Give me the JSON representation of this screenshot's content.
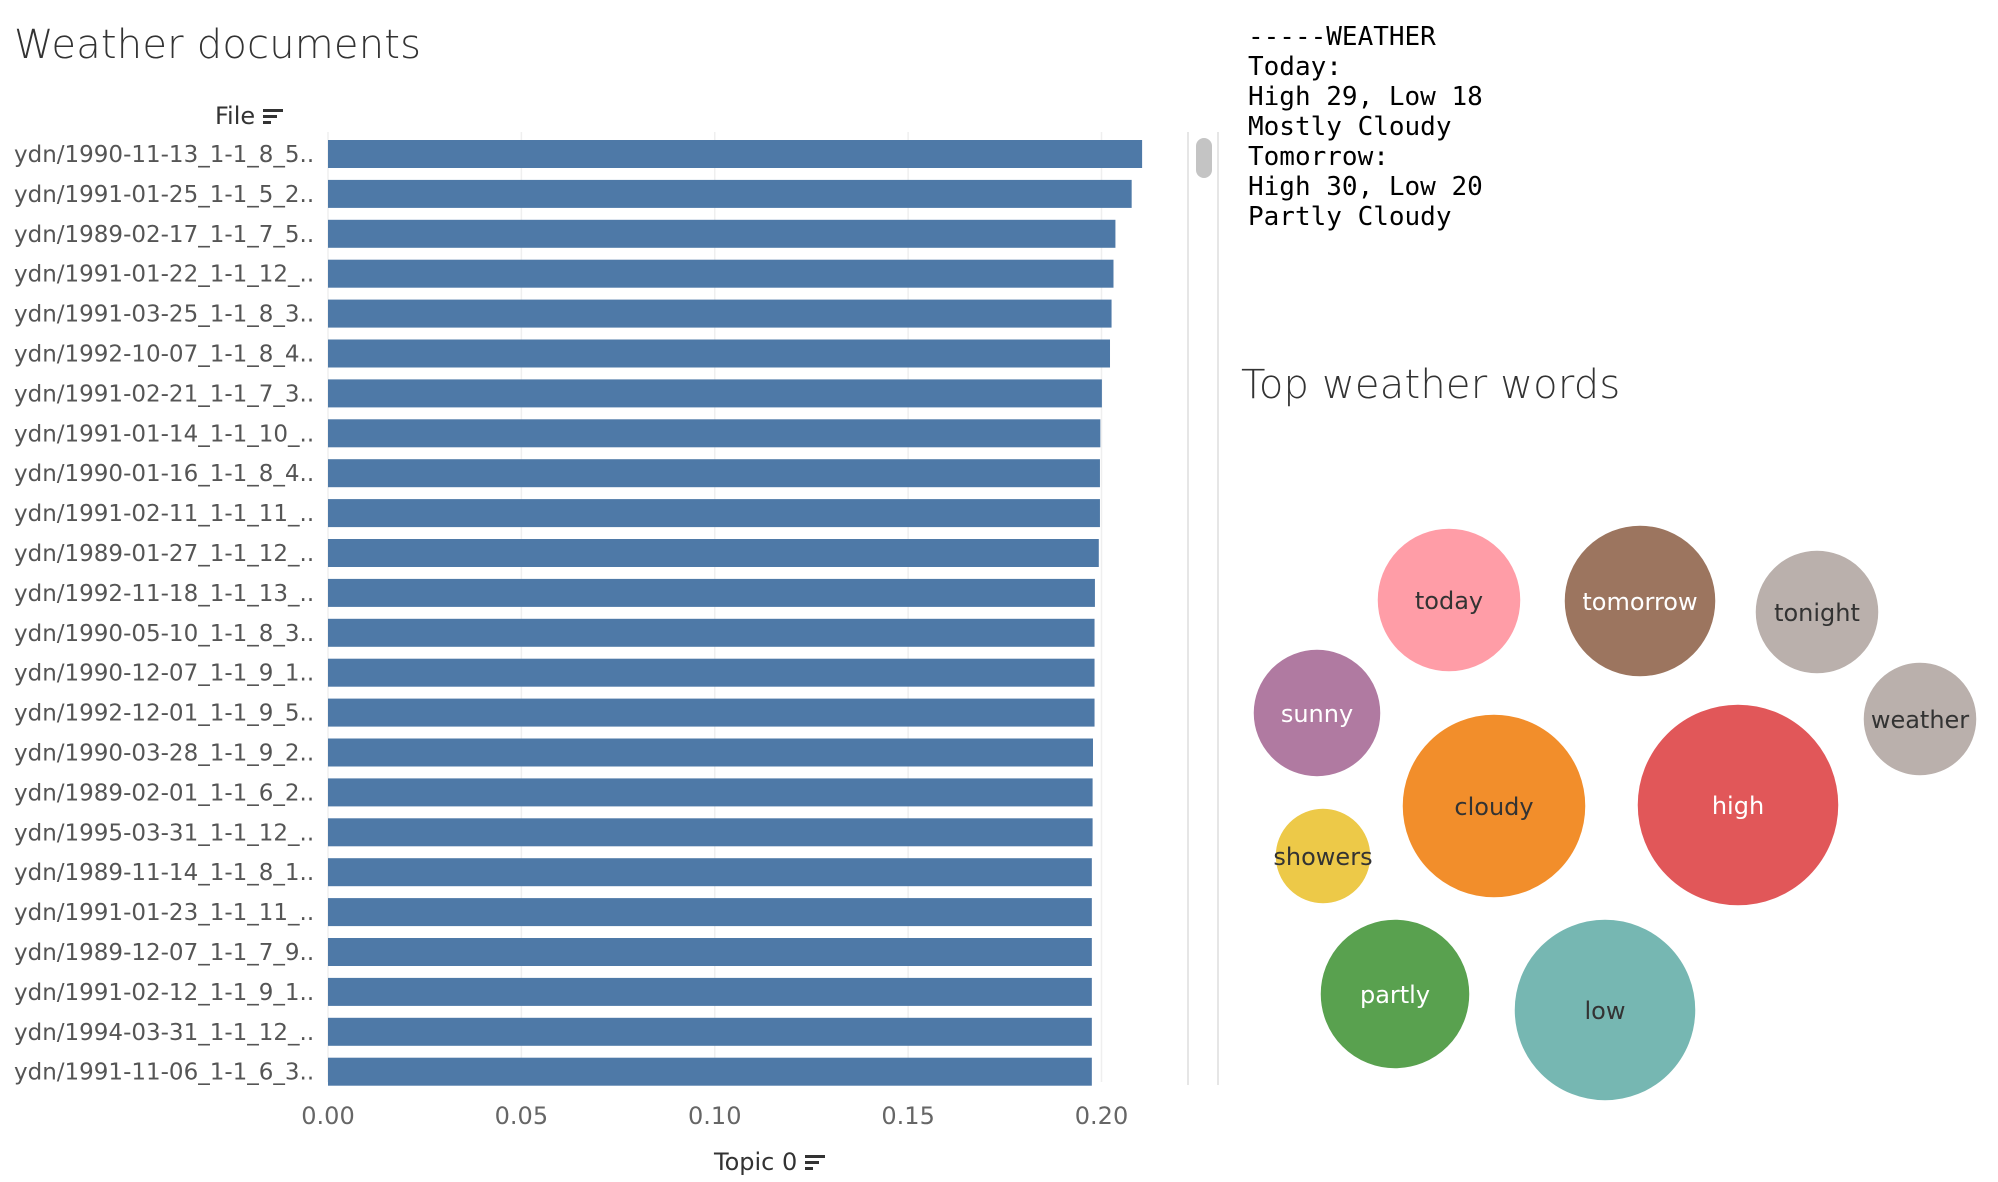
{
  "left_panel": {
    "title": "Weather documents",
    "row_header": "File",
    "axis_label": "Topic 0"
  },
  "weather_text": {
    "lines": [
      "-----WEATHER",
      "Today:",
      "High 29, Low 18",
      "Mostly Cloudy",
      "Tomorrow:",
      "High 30, Low 20",
      "Partly Cloudy"
    ]
  },
  "right_panel": {
    "title": "Top weather words"
  },
  "colors": {
    "bar": "#4e79a7",
    "gridline": "#efefef",
    "today": "#ff9da7",
    "tomorrow": "#9c755f",
    "tonight": "#bab0ac",
    "weather": "#bab0ac",
    "sunny": "#b07aa1",
    "cloudy": "#f28e2b",
    "high": "#e15759",
    "showers": "#edc948",
    "partly": "#59a14f",
    "low": "#76b7b2"
  },
  "chart_data": [
    {
      "type": "bar",
      "orientation": "horizontal",
      "title": "Weather documents",
      "ylabel": "File",
      "xlabel": "Topic 0",
      "xlim": [
        0,
        0.225
      ],
      "xticks": [
        "0.00",
        "0.05",
        "0.10",
        "0.15",
        "0.20"
      ],
      "grid": true,
      "categories": [
        "ydn/1990-11-13_1-1_8_5..",
        "ydn/1991-01-25_1-1_5_2..",
        "ydn/1989-02-17_1-1_7_5..",
        "ydn/1991-01-22_1-1_12_..",
        "ydn/1991-03-25_1-1_8_3..",
        "ydn/1992-10-07_1-1_8_4..",
        "ydn/1991-02-21_1-1_7_3..",
        "ydn/1991-01-14_1-1_10_..",
        "ydn/1990-01-16_1-1_8_4..",
        "ydn/1991-02-11_1-1_11_..",
        "ydn/1989-01-27_1-1_12_..",
        "ydn/1992-11-18_1-1_13_..",
        "ydn/1990-05-10_1-1_8_3..",
        "ydn/1990-12-07_1-1_9_1..",
        "ydn/1992-12-01_1-1_9_5..",
        "ydn/1990-03-28_1-1_9_2..",
        "ydn/1989-02-01_1-1_6_2..",
        "ydn/1995-03-31_1-1_12_..",
        "ydn/1989-11-14_1-1_8_1..",
        "ydn/1991-01-23_1-1_11_..",
        "ydn/1989-12-07_1-1_7_9..",
        "ydn/1991-02-12_1-1_9_1..",
        "ydn/1994-03-31_1-1_12_..",
        "ydn/1991-11-06_1-1_6_3.."
      ],
      "values": [
        0.2105,
        0.2078,
        0.2036,
        0.2031,
        0.2026,
        0.2022,
        0.2001,
        0.1997,
        0.1996,
        0.1996,
        0.1993,
        0.1983,
        0.1982,
        0.1982,
        0.1982,
        0.1978,
        0.1977,
        0.1977,
        0.1975,
        0.1975,
        0.1975,
        0.1975,
        0.1975,
        0.1975
      ]
    },
    {
      "type": "bubble",
      "title": "Top weather words",
      "words": [
        "today",
        "tomorrow",
        "tonight",
        "weather",
        "sunny",
        "cloudy",
        "high",
        "showers",
        "partly",
        "low"
      ],
      "relative_size": [
        72,
        76,
        62,
        57,
        64,
        92,
        101,
        48,
        75,
        91
      ]
    }
  ]
}
